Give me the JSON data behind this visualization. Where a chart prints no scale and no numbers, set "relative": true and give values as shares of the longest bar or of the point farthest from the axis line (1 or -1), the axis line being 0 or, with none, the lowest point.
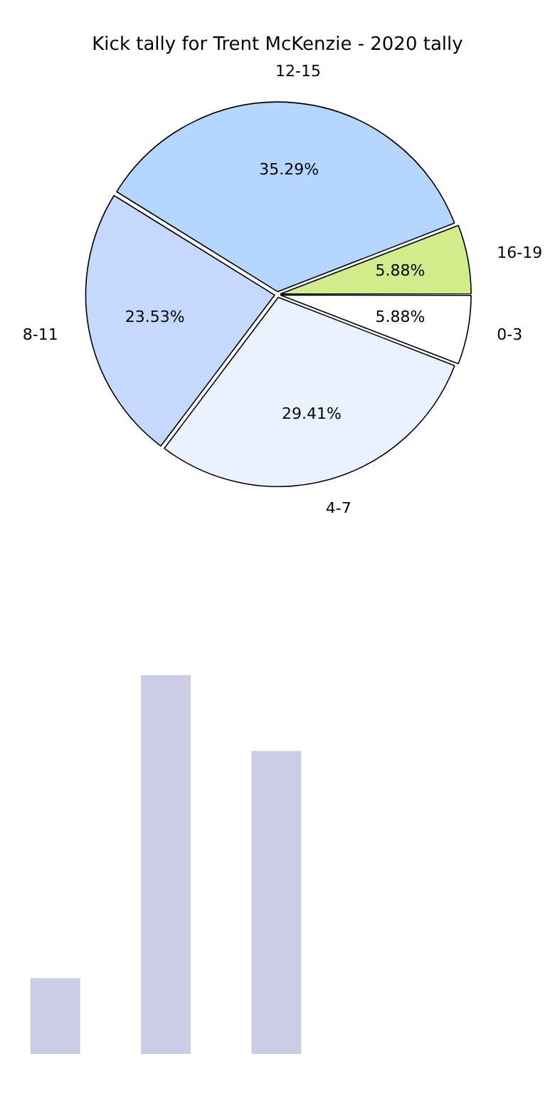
{
  "chart_data": [
    {
      "type": "pie",
      "title": "Kick tally for Trent McKenzie - 2020 tally",
      "categories": [
        "0-3",
        "4-7",
        "8-11",
        "12-15",
        "16-19"
      ],
      "values": [
        5.88,
        29.41,
        23.53,
        35.29,
        5.88
      ],
      "colors": [
        "#ffffff",
        "#eaf2ff",
        "#c5d8ff",
        "#b5d6ff",
        "#d1ec8a"
      ],
      "value_labels": [
        "5.88%",
        "29.41%",
        "23.53%",
        "35.29%",
        "5.88%"
      ]
    },
    {
      "type": "bar",
      "categories": [
        null,
        null,
        null
      ],
      "values": [
        0.2,
        1,
        0.8
      ],
      "color": "#cccce4",
      "relative": true
    }
  ]
}
